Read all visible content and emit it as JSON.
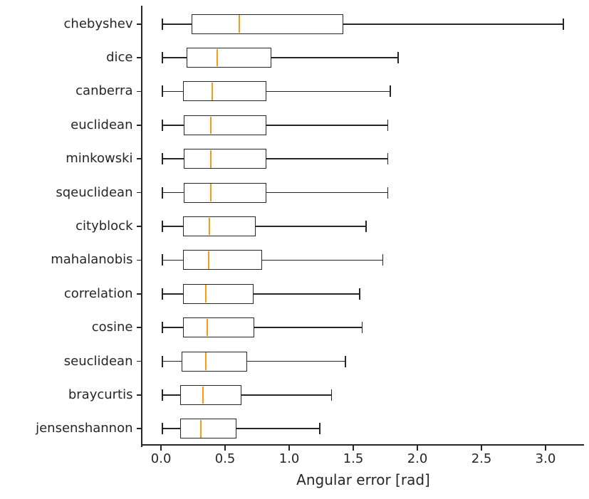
{
  "figure": {
    "background": "#ffffff"
  },
  "chart_data": {
    "type": "boxplot",
    "orientation": "horizontal",
    "title": "",
    "xlabel": "Angular error [rad]",
    "ylabel": "",
    "xlim": [
      -0.145,
      3.3
    ],
    "xticks": [
      0.0,
      0.5,
      1.0,
      1.5,
      2.0,
      2.5,
      3.0
    ],
    "xtick_labels": [
      "0.0",
      "0.5",
      "1.0",
      "1.5",
      "2.0",
      "2.5",
      "3.0"
    ],
    "grid": false,
    "legend": null,
    "categories": [
      "chebyshev",
      "dice",
      "canberra",
      "euclidean",
      "minkowski",
      "sqeuclidean",
      "cityblock",
      "mahalanobis",
      "correlation",
      "cosine",
      "seuclidean",
      "braycurtis",
      "jensenshannon"
    ],
    "series": [
      {
        "name": "angular-error-distribution",
        "boxes": [
          {
            "label": "chebyshev",
            "whislo": 0.01,
            "q1": 0.24,
            "med": 0.61,
            "q3": 1.42,
            "whishi": 3.14
          },
          {
            "label": "dice",
            "whislo": 0.01,
            "q1": 0.2,
            "med": 0.44,
            "q3": 0.86,
            "whishi": 1.85
          },
          {
            "label": "canberra",
            "whislo": 0.01,
            "q1": 0.17,
            "med": 0.4,
            "q3": 0.82,
            "whishi": 1.79
          },
          {
            "label": "euclidean",
            "whislo": 0.01,
            "q1": 0.18,
            "med": 0.39,
            "q3": 0.82,
            "whishi": 1.77
          },
          {
            "label": "minkowski",
            "whislo": 0.01,
            "q1": 0.18,
            "med": 0.39,
            "q3": 0.82,
            "whishi": 1.77
          },
          {
            "label": "sqeuclidean",
            "whislo": 0.01,
            "q1": 0.18,
            "med": 0.39,
            "q3": 0.82,
            "whishi": 1.77
          },
          {
            "label": "cityblock",
            "whislo": 0.01,
            "q1": 0.17,
            "med": 0.38,
            "q3": 0.74,
            "whishi": 1.6
          },
          {
            "label": "mahalanobis",
            "whislo": 0.01,
            "q1": 0.17,
            "med": 0.37,
            "q3": 0.79,
            "whishi": 1.73
          },
          {
            "label": "correlation",
            "whislo": 0.01,
            "q1": 0.17,
            "med": 0.35,
            "q3": 0.72,
            "whishi": 1.55
          },
          {
            "label": "cosine",
            "whislo": 0.01,
            "q1": 0.17,
            "med": 0.36,
            "q3": 0.73,
            "whishi": 1.57
          },
          {
            "label": "seuclidean",
            "whislo": 0.01,
            "q1": 0.16,
            "med": 0.35,
            "q3": 0.67,
            "whishi": 1.44
          },
          {
            "label": "braycurtis",
            "whislo": 0.01,
            "q1": 0.15,
            "med": 0.33,
            "q3": 0.63,
            "whishi": 1.33
          },
          {
            "label": "jensenshannon",
            "whislo": 0.01,
            "q1": 0.15,
            "med": 0.31,
            "q3": 0.59,
            "whishi": 1.24
          }
        ]
      }
    ],
    "colors": {
      "box_edge": "#262626",
      "box_fill": "#ffffff",
      "median": "#ff9913",
      "whisker": "#262626",
      "axis": "#262626",
      "text": "#262626",
      "background": "#ffffff"
    }
  }
}
